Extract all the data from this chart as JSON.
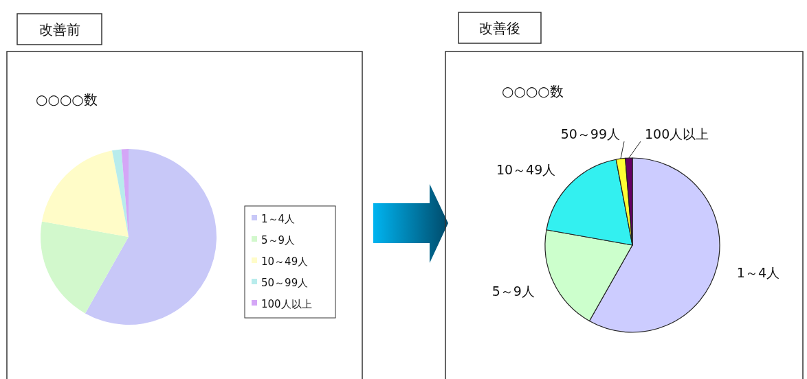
{
  "chart_data": [
    {
      "type": "pie",
      "title": "○○○○数",
      "annotations": [
        "改善前"
      ],
      "categories": [
        "1～4人",
        "5～9人",
        "10～49人",
        "50～99人",
        "100人以上"
      ],
      "values": [
        58.2,
        19.6,
        19.2,
        1.7,
        1.3
      ],
      "colors": [
        "#c8c8f8",
        "#d2f8cc",
        "#fffcc8",
        "#b8ecec",
        "#d4a6f6"
      ],
      "legend": "right"
    },
    {
      "type": "pie",
      "title": "○○○○数",
      "annotations": [
        "改善後"
      ],
      "categories": [
        "1～4人",
        "5～9人",
        "10～49人",
        "50～99人",
        "100人以上"
      ],
      "values": [
        58.2,
        19.6,
        19.2,
        1.7,
        1.3
      ],
      "colors": [
        "#ccccff",
        "#ccffcc",
        "#33f0f0",
        "#ffff33",
        "#660066"
      ],
      "legend": false
    }
  ]
}
